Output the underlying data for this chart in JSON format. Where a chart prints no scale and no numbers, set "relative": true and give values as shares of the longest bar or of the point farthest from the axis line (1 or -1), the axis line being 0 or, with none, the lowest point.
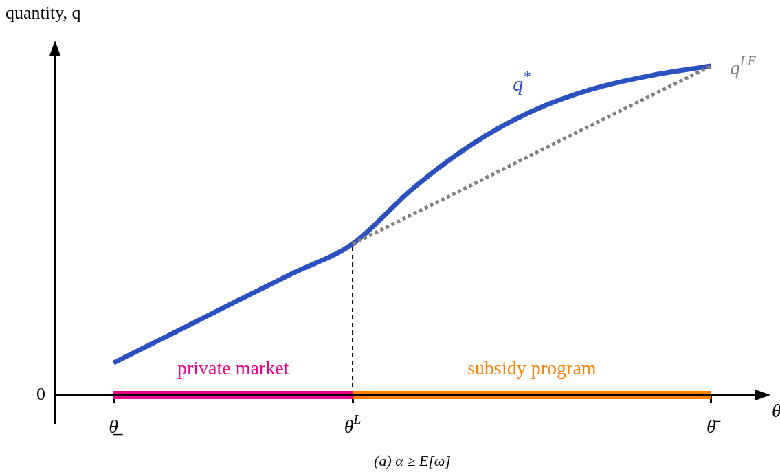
{
  "chart_data": {
    "type": "line",
    "relative": true,
    "ylabel": "quantity, q",
    "xlabel": "θ",
    "categories": [
      "θ̲",
      null,
      null,
      null,
      "θ$^{L}$",
      null,
      null,
      null,
      null,
      null,
      "θ̄"
    ],
    "series": [
      {
        "name": "q$^{*}$",
        "color": "#2b50c0",
        "values": [
          0.098,
          0.188,
          0.28,
          0.37,
          0.459,
          0.626,
          0.762,
          0.862,
          0.929,
          0.971,
          1.0
        ],
        "line_style": "solid"
      },
      {
        "name": "q$^{LF}$",
        "color": "#808080",
        "values": [
          null,
          null,
          null,
          null,
          0.459,
          0.549,
          0.639,
          0.73,
          0.82,
          0.91,
          1.0
        ],
        "line_style": "dotted"
      },
      {
        "name": "private market",
        "color": "#ec008c",
        "values": [
          0,
          0,
          0,
          0,
          0,
          null,
          null,
          null,
          null,
          null,
          null
        ],
        "line_style": "solid"
      },
      {
        "name": "subsidy program",
        "color": "#ff7f00",
        "values": [
          null,
          null,
          null,
          null,
          0,
          0,
          0,
          0,
          0,
          0,
          0
        ],
        "line_style": "solid"
      }
    ],
    "ref_lines": [
      {
        "axis": "x",
        "value": "θ$^{L}$",
        "line_style": "dashed",
        "color": "#000000"
      }
    ],
    "annotations": [
      "0",
      "(a) α ≥ E[ω]"
    ],
    "legend": false,
    "grid": false,
    "marker": "none"
  }
}
